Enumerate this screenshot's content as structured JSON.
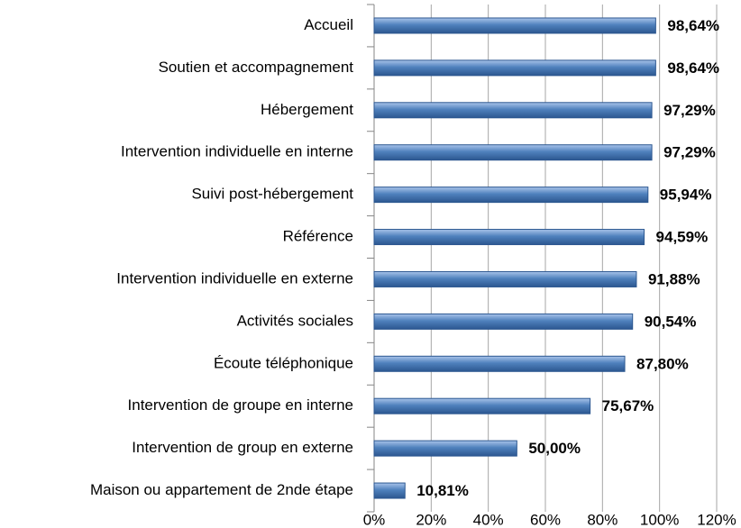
{
  "chart_data": {
    "type": "bar",
    "orientation": "horizontal",
    "categories": [
      "Accueil",
      "Soutien et accompagnement",
      "Hébergement",
      "Intervention individuelle en interne",
      "Suivi post-hébergement",
      "Référence",
      "Intervention individuelle en externe",
      "Activités sociales",
      "Écoute téléphonique",
      "Intervention de groupe en interne",
      "Intervention de group en externe",
      "Maison ou appartement de 2nde étape"
    ],
    "values": [
      98.64,
      98.64,
      97.29,
      97.29,
      95.94,
      94.59,
      91.88,
      90.54,
      87.8,
      75.67,
      50.0,
      10.81
    ],
    "value_labels": [
      "98,64%",
      "98,64%",
      "97,29%",
      "97,29%",
      "95,94%",
      "94,59%",
      "91,88%",
      "90,54%",
      "87,80%",
      "75,67%",
      "50,00%",
      "10,81%"
    ],
    "color": "#4f81bd",
    "xlim": [
      0,
      120
    ],
    "xticks": [
      {
        "value": 0,
        "label": "0%"
      },
      {
        "value": 20,
        "label": "20%"
      },
      {
        "value": 40,
        "label": "40%"
      },
      {
        "value": 60,
        "label": "60%"
      },
      {
        "value": 80,
        "label": "80%"
      },
      {
        "value": 100,
        "label": "100%"
      },
      {
        "value": 120,
        "label": "120%"
      }
    ],
    "grid": true
  }
}
